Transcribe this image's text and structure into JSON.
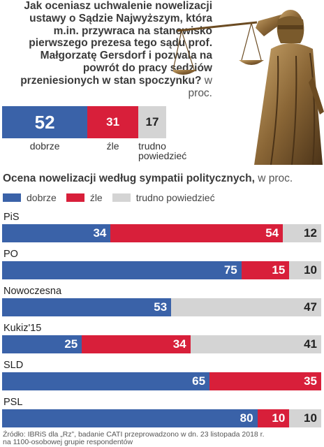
{
  "question": {
    "text": "Jak oceniasz uchwalenie nowelizacji ustawy o Sądzie Najwyższym, która m.in. przywraca na stanowisko pierwszego prezesa tego sądu prof. Małgorzatę Gersdorf i pozwala na powrót do pracy sędziów przeniesionych w stan spoczynku?",
    "unit": "w proc."
  },
  "colors": {
    "dobrze": "#3a62a8",
    "zle": "#d81f3a",
    "trudno": "#d4d4d4"
  },
  "summary": [
    {
      "label": "dobrze",
      "value": 52
    },
    {
      "label": "źle",
      "value": 31
    },
    {
      "label": "trudno powiedzieć",
      "value": 17
    }
  ],
  "section": {
    "title": "Ocena nowelizacji według sympatii politycznych,",
    "unit": "w proc."
  },
  "legend": [
    "dobrze",
    "źle",
    "trudno powiedzieć"
  ],
  "chart_data": {
    "type": "bar",
    "stacked": true,
    "orientation": "horizontal",
    "categories": [
      "PiS",
      "PO",
      "Nowoczesna",
      "Kukiz'15",
      "SLD",
      "PSL"
    ],
    "series": [
      {
        "name": "dobrze",
        "values": [
          34,
          75,
          53,
          25,
          65,
          80
        ]
      },
      {
        "name": "źle",
        "values": [
          54,
          15,
          0,
          34,
          35,
          10
        ]
      },
      {
        "name": "trudno powiedzieć",
        "values": [
          12,
          10,
          47,
          41,
          0,
          10
        ]
      }
    ]
  },
  "source": {
    "line1": "Źródło: IBRiS dla „Rz”, badanie CATI przeprowadzono w dn. 23 listopada 2018 r.",
    "line2": "na 1100-osobowej grupie respondentów"
  }
}
